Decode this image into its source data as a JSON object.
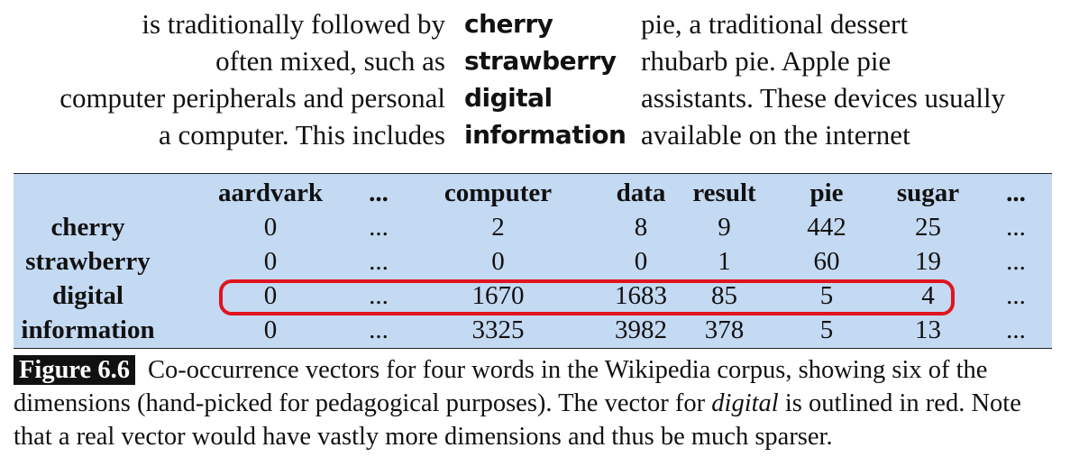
{
  "concordance": [
    {
      "left": "is traditionally followed by",
      "keyword": "cherry",
      "right": "pie, a traditional dessert"
    },
    {
      "left": "often mixed, such as",
      "keyword": "strawberry",
      "right": "rhubarb pie. Apple pie"
    },
    {
      "left": "computer peripherals and personal",
      "keyword": "digital",
      "right": "assistants. These devices usually"
    },
    {
      "left": "a computer. This includes",
      "keyword": "information",
      "right": "available on the internet"
    }
  ],
  "table": {
    "columns": [
      "aardvark",
      "...",
      "computer",
      "data",
      "result",
      "pie",
      "sugar",
      "..."
    ],
    "rows": [
      {
        "label": "cherry",
        "values": [
          "0",
          "...",
          "2",
          "8",
          "9",
          "442",
          "25",
          "..."
        ]
      },
      {
        "label": "strawberry",
        "values": [
          "0",
          "...",
          "0",
          "0",
          "1",
          "60",
          "19",
          "..."
        ]
      },
      {
        "label": "digital",
        "values": [
          "0",
          "...",
          "1670",
          "1683",
          "85",
          "5",
          "4",
          "..."
        ]
      },
      {
        "label": "information",
        "values": [
          "0",
          "...",
          "3325",
          "3982",
          "378",
          "5",
          "13",
          "..."
        ]
      }
    ],
    "highlight_row": "digital",
    "highlight_color": "#e0141e",
    "background_color": "#c4d9f2"
  },
  "caption": {
    "label": "Figure 6.6",
    "text_before": "Co-occurrence vectors for four words in the Wikipedia corpus, showing six of the dimensions (hand-picked for pedagogical purposes). The vector for ",
    "emphasis": "digital",
    "text_after": " is outlined in red. Note that a real vector would have vastly more dimensions and thus be much sparser."
  }
}
